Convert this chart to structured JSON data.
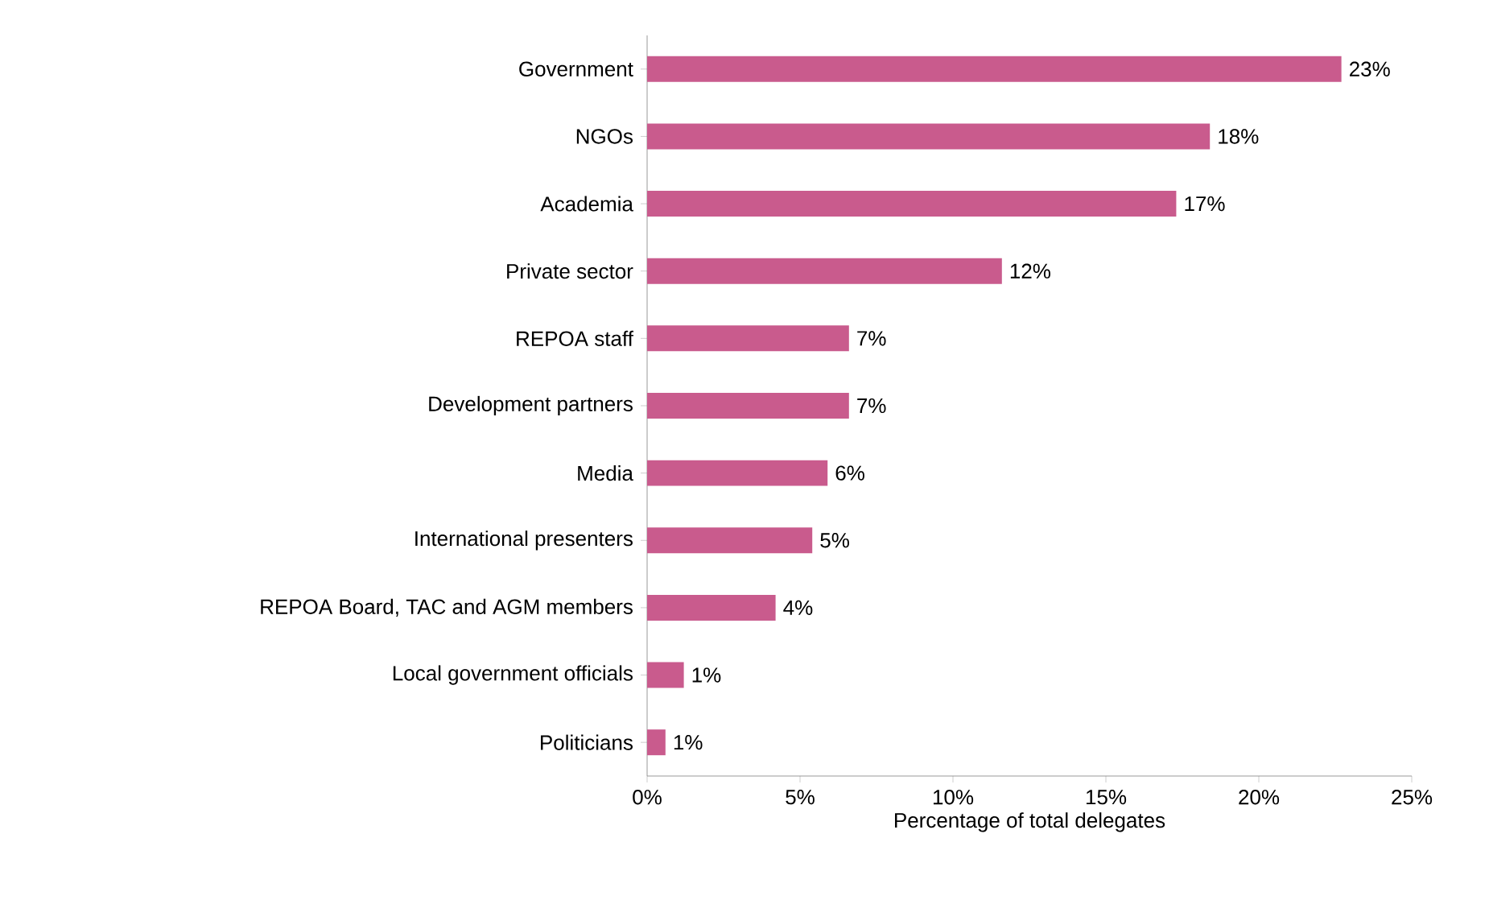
{
  "chart_data": {
    "type": "bar",
    "orientation": "horizontal",
    "xlabel": "Percentage of total  delegates",
    "categories": [
      "Government",
      "NGOs",
      "Academia",
      "Private sector",
      "REPOA staff",
      "Development partners",
      "Media",
      "International presenters",
      "REPOA Board, TAC and AGM members",
      "Local government officials",
      "Politicians"
    ],
    "values": [
      22.7,
      18.4,
      17.3,
      11.6,
      6.6,
      6.6,
      5.9,
      5.4,
      4.2,
      1.2,
      0.6
    ],
    "value_labels": [
      "23%",
      "18%",
      "17%",
      "12%",
      "7%",
      "7%",
      "6%",
      "5%",
      "4%",
      "1%",
      "1%"
    ],
    "color": "#c95b8d",
    "xlim": [
      0,
      25
    ],
    "xticks": [
      {
        "value": 0,
        "label": "0%"
      },
      {
        "value": 5,
        "label": "5%"
      },
      {
        "value": 10,
        "label": "10%"
      },
      {
        "value": 15,
        "label": "15%"
      },
      {
        "value": 20,
        "label": "20%"
      },
      {
        "value": 25,
        "label": "25%"
      }
    ],
    "grid": false
  }
}
